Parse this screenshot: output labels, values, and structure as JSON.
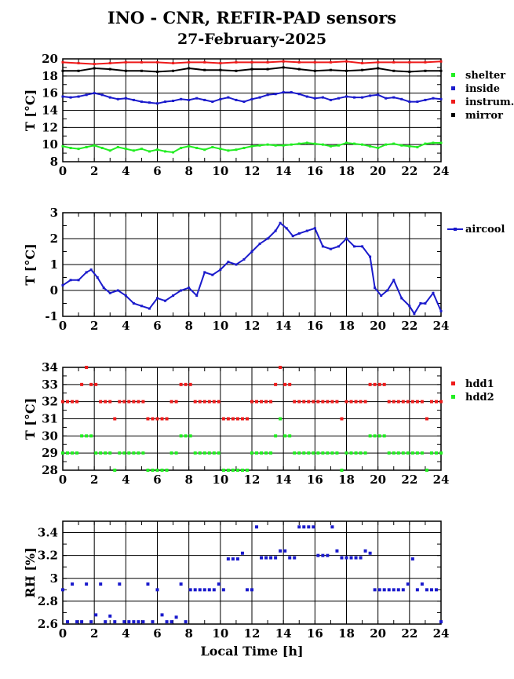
{
  "title": "INO - CNR, REFIR-PAD sensors",
  "subtitle": "27-February-2025",
  "colors": {
    "green": "#22ee22",
    "blue": "#1a1acc",
    "red": "#ee1a1a",
    "black": "#000000"
  },
  "chart_data": [
    {
      "type": "line",
      "ylabel": "T [°C]",
      "xlim": [
        0,
        24
      ],
      "ylim": [
        8,
        20
      ],
      "xticks": [
        "0",
        "2",
        "4",
        "6",
        "8",
        "10",
        "12",
        "14",
        "16",
        "18",
        "20",
        "22",
        "24"
      ],
      "yticks": [
        "8",
        "10",
        "12",
        "14",
        "16",
        "18",
        "20"
      ],
      "grid": true,
      "legend": "right",
      "series": [
        {
          "name": "shelter",
          "color": "#22ee22",
          "x": [
            0,
            0.5,
            1,
            1.5,
            2,
            2.5,
            3,
            3.5,
            4,
            4.5,
            5,
            5.5,
            6,
            6.5,
            7,
            7.5,
            8,
            8.5,
            9,
            9.5,
            10,
            10.5,
            11,
            11.5,
            12,
            12.5,
            13,
            13.5,
            14,
            14.5,
            15,
            15.5,
            16,
            16.5,
            17,
            17.5,
            18,
            18.5,
            19,
            19.5,
            20,
            20.5,
            21,
            21.5,
            22,
            22.5,
            23,
            23.5,
            24
          ],
          "y": [
            9.8,
            9.6,
            9.5,
            9.7,
            9.9,
            9.6,
            9.3,
            9.7,
            9.5,
            9.3,
            9.5,
            9.2,
            9.4,
            9.2,
            9.1,
            9.6,
            9.8,
            9.6,
            9.4,
            9.7,
            9.5,
            9.3,
            9.4,
            9.6,
            9.8,
            9.9,
            10.0,
            9.9,
            9.9,
            10.0,
            10.1,
            10.2,
            10.1,
            10.0,
            9.8,
            9.9,
            10.2,
            10.1,
            10.0,
            9.8,
            9.6,
            10.0,
            10.1,
            9.9,
            9.8,
            9.7,
            10.1,
            10.2,
            10.2
          ]
        },
        {
          "name": "inside",
          "color": "#1a1acc",
          "x": [
            0,
            0.5,
            1,
            1.5,
            2,
            2.5,
            3,
            3.5,
            4,
            4.5,
            5,
            5.5,
            6,
            6.5,
            7,
            7.5,
            8,
            8.5,
            9,
            9.5,
            10,
            10.5,
            11,
            11.5,
            12,
            12.5,
            13,
            13.5,
            14,
            14.5,
            15,
            15.5,
            16,
            16.5,
            17,
            17.5,
            18,
            18.5,
            19,
            19.5,
            20,
            20.5,
            21,
            21.5,
            22,
            22.5,
            23,
            23.5,
            24
          ],
          "y": [
            15.6,
            15.5,
            15.6,
            15.8,
            16.0,
            15.8,
            15.5,
            15.3,
            15.4,
            15.2,
            15.0,
            14.9,
            14.8,
            15.0,
            15.1,
            15.3,
            15.2,
            15.4,
            15.2,
            15.0,
            15.3,
            15.5,
            15.2,
            15.0,
            15.3,
            15.5,
            15.8,
            15.9,
            16.1,
            16.1,
            15.9,
            15.6,
            15.4,
            15.5,
            15.2,
            15.4,
            15.6,
            15.5,
            15.5,
            15.7,
            15.8,
            15.4,
            15.5,
            15.3,
            15.0,
            15.0,
            15.2,
            15.4,
            15.3
          ]
        },
        {
          "name": "instrum.",
          "color": "#ee1a1a",
          "x": [
            0,
            1,
            2,
            3,
            4,
            5,
            6,
            7,
            8,
            9,
            10,
            11,
            12,
            13,
            14,
            15,
            16,
            17,
            18,
            19,
            20,
            21,
            22,
            23,
            24
          ],
          "y": [
            19.6,
            19.5,
            19.4,
            19.5,
            19.6,
            19.6,
            19.6,
            19.5,
            19.6,
            19.6,
            19.5,
            19.6,
            19.6,
            19.6,
            19.7,
            19.6,
            19.6,
            19.6,
            19.7,
            19.5,
            19.6,
            19.6,
            19.6,
            19.6,
            19.7
          ]
        },
        {
          "name": "mirror",
          "color": "#000000",
          "x": [
            0,
            1,
            2,
            3,
            4,
            5,
            6,
            7,
            8,
            9,
            10,
            11,
            12,
            13,
            14,
            15,
            16,
            17,
            18,
            19,
            20,
            21,
            22,
            23,
            24
          ],
          "y": [
            18.6,
            18.6,
            18.9,
            18.8,
            18.6,
            18.6,
            18.5,
            18.6,
            18.9,
            18.7,
            18.7,
            18.6,
            18.8,
            18.8,
            19.0,
            18.8,
            18.6,
            18.7,
            18.6,
            18.7,
            18.9,
            18.6,
            18.5,
            18.6,
            18.6
          ]
        }
      ]
    },
    {
      "type": "line",
      "ylabel": "T [°C]",
      "xlim": [
        0,
        24
      ],
      "ylim": [
        -1,
        3
      ],
      "xticks": [
        "0",
        "2",
        "4",
        "6",
        "8",
        "10",
        "12",
        "14",
        "16",
        "18",
        "20",
        "22",
        "24"
      ],
      "yticks": [
        "-1",
        "0",
        "1",
        "2",
        "3"
      ],
      "grid": true,
      "legend": "right",
      "series": [
        {
          "name": "aircool",
          "color": "#1a1acc",
          "x": [
            0,
            0.5,
            1,
            1.5,
            1.8,
            2.2,
            2.6,
            3,
            3.5,
            4,
            4.5,
            5,
            5.5,
            6,
            6.5,
            7,
            7.5,
            8,
            8.5,
            9,
            9.5,
            10,
            10.5,
            11,
            11.5,
            12,
            12.5,
            13,
            13.5,
            13.8,
            14.2,
            14.6,
            15,
            15.5,
            16,
            16.5,
            17,
            17.5,
            18,
            18.5,
            19,
            19.5,
            19.8,
            20.2,
            20.6,
            21,
            21.5,
            22,
            22.3,
            22.7,
            23,
            23.5,
            24
          ],
          "y": [
            0.2,
            0.4,
            0.4,
            0.7,
            0.8,
            0.5,
            0.1,
            -0.1,
            0.0,
            -0.2,
            -0.5,
            -0.6,
            -0.7,
            -0.3,
            -0.4,
            -0.2,
            0.0,
            0.1,
            -0.2,
            0.7,
            0.6,
            0.8,
            1.1,
            1.0,
            1.2,
            1.5,
            1.8,
            2.0,
            2.3,
            2.6,
            2.4,
            2.1,
            2.2,
            2.3,
            2.4,
            1.7,
            1.6,
            1.7,
            2.0,
            1.7,
            1.7,
            1.3,
            0.1,
            -0.2,
            0.0,
            0.4,
            -0.3,
            -0.6,
            -0.9,
            -0.5,
            -0.5,
            -0.1,
            -0.8
          ]
        }
      ]
    },
    {
      "type": "scatter",
      "ylabel": "T [°C]",
      "xlim": [
        0,
        24
      ],
      "ylim": [
        28,
        34
      ],
      "xticks": [
        "0",
        "2",
        "4",
        "6",
        "8",
        "10",
        "12",
        "14",
        "16",
        "18",
        "20",
        "22",
        "24"
      ],
      "yticks": [
        "28",
        "29",
        "30",
        "31",
        "32",
        "33",
        "34"
      ],
      "grid": true,
      "legend": "right",
      "series": [
        {
          "name": "hdd1",
          "color": "#ee1a1a",
          "x": [
            0,
            0.3,
            0.6,
            0.9,
            1.2,
            1.5,
            1.8,
            2.1,
            2.4,
            2.7,
            3.0,
            3.3,
            3.6,
            3.9,
            4.2,
            4.5,
            4.8,
            5.1,
            5.4,
            5.7,
            6.0,
            6.3,
            6.6,
            6.9,
            7.2,
            7.5,
            7.8,
            8.1,
            8.4,
            8.7,
            9.0,
            9.3,
            9.6,
            9.9,
            10.2,
            10.5,
            10.8,
            11.1,
            11.4,
            11.7,
            12.0,
            12.3,
            12.6,
            12.9,
            13.2,
            13.5,
            13.8,
            14.1,
            14.4,
            14.7,
            15.0,
            15.3,
            15.6,
            15.9,
            16.2,
            16.5,
            16.8,
            17.1,
            17.4,
            17.7,
            18.0,
            18.3,
            18.6,
            18.9,
            19.2,
            19.5,
            19.8,
            20.1,
            20.4,
            20.7,
            21.0,
            21.3,
            21.6,
            21.9,
            22.2,
            22.5,
            22.8,
            23.1,
            23.4,
            23.7,
            24.0
          ],
          "y": [
            32,
            32,
            32,
            32,
            33,
            34,
            33,
            33,
            32,
            32,
            32,
            31,
            32,
            32,
            32,
            32,
            32,
            32,
            31,
            31,
            31,
            31,
            31,
            32,
            32,
            33,
            33,
            33,
            32,
            32,
            32,
            32,
            32,
            32,
            31,
            31,
            31,
            31,
            31,
            31,
            32,
            32,
            32,
            32,
            32,
            33,
            34,
            33,
            33,
            32,
            32,
            32,
            32,
            32,
            32,
            32,
            32,
            32,
            32,
            31,
            32,
            32,
            32,
            32,
            32,
            33,
            33,
            33,
            33,
            32,
            32,
            32,
            32,
            32,
            32,
            32,
            32,
            31,
            32,
            32,
            32
          ]
        },
        {
          "name": "hdd2",
          "color": "#22ee22",
          "x": [
            0,
            0.3,
            0.6,
            0.9,
            1.2,
            1.5,
            1.8,
            2.1,
            2.4,
            2.7,
            3.0,
            3.3,
            3.6,
            3.9,
            4.2,
            4.5,
            4.8,
            5.1,
            5.4,
            5.7,
            6.0,
            6.3,
            6.6,
            6.9,
            7.2,
            7.5,
            7.8,
            8.1,
            8.4,
            8.7,
            9.0,
            9.3,
            9.6,
            9.9,
            10.2,
            10.5,
            10.8,
            11.1,
            11.4,
            11.7,
            12.0,
            12.3,
            12.6,
            12.9,
            13.2,
            13.5,
            13.8,
            14.1,
            14.4,
            14.7,
            15.0,
            15.3,
            15.6,
            15.9,
            16.2,
            16.5,
            16.8,
            17.1,
            17.4,
            17.7,
            18.0,
            18.3,
            18.6,
            18.9,
            19.2,
            19.5,
            19.8,
            20.1,
            20.4,
            20.7,
            21.0,
            21.3,
            21.6,
            21.9,
            22.2,
            22.5,
            22.8,
            23.1,
            23.4,
            23.7,
            24.0
          ],
          "y": [
            29,
            29,
            29,
            29,
            30,
            30,
            30,
            29,
            29,
            29,
            29,
            28,
            29,
            29,
            29,
            29,
            29,
            29,
            28,
            28,
            28,
            28,
            28,
            29,
            29,
            30,
            30,
            30,
            29,
            29,
            29,
            29,
            29,
            29,
            28,
            28,
            28,
            28,
            28,
            28,
            29,
            29,
            29,
            29,
            29,
            30,
            31,
            30,
            30,
            29,
            29,
            29,
            29,
            29,
            29,
            29,
            29,
            29,
            29,
            28,
            29,
            29,
            29,
            29,
            29,
            30,
            30,
            30,
            30,
            29,
            29,
            29,
            29,
            29,
            29,
            29,
            29,
            28,
            29,
            29,
            29
          ]
        }
      ]
    },
    {
      "type": "scatter",
      "ylabel": "RH [%]",
      "xlabel": "Local Time [h]",
      "xlim": [
        0,
        24
      ],
      "ylim": [
        2.6,
        3.5
      ],
      "xticks": [
        "0",
        "2",
        "4",
        "6",
        "8",
        "10",
        "12",
        "14",
        "16",
        "18",
        "20",
        "22",
        "24"
      ],
      "yticks": [
        "2.6",
        "2.8",
        "3",
        "3.2",
        "3.4"
      ],
      "grid": true,
      "legend": "none",
      "series": [
        {
          "name": "",
          "color": "#1a1acc",
          "x": [
            0,
            0.3,
            0.6,
            0.9,
            1.2,
            1.5,
            1.8,
            2.1,
            2.4,
            2.7,
            3.0,
            3.3,
            3.6,
            3.9,
            4.2,
            4.5,
            4.8,
            5.1,
            5.4,
            5.7,
            6.0,
            6.3,
            6.6,
            6.9,
            7.2,
            7.5,
            7.8,
            8.1,
            8.4,
            8.7,
            9.0,
            9.3,
            9.6,
            9.9,
            10.2,
            10.5,
            10.8,
            11.1,
            11.4,
            11.7,
            12.0,
            12.3,
            12.6,
            12.9,
            13.2,
            13.5,
            13.8,
            14.1,
            14.4,
            14.7,
            15.0,
            15.3,
            15.6,
            15.9,
            16.2,
            16.5,
            16.8,
            17.1,
            17.4,
            17.7,
            18.0,
            18.3,
            18.6,
            18.9,
            19.2,
            19.5,
            19.8,
            20.1,
            20.4,
            20.7,
            21.0,
            21.3,
            21.6,
            21.9,
            22.2,
            22.5,
            22.8,
            23.1,
            23.4,
            23.7,
            24.0
          ],
          "y": [
            2.9,
            2.62,
            2.95,
            2.62,
            2.62,
            2.95,
            2.62,
            2.68,
            2.95,
            2.62,
            2.67,
            2.62,
            2.95,
            2.62,
            2.62,
            2.62,
            2.62,
            2.62,
            2.95,
            2.62,
            2.9,
            2.68,
            2.62,
            2.62,
            2.66,
            2.95,
            2.62,
            2.9,
            2.9,
            2.9,
            2.9,
            2.9,
            2.9,
            2.95,
            2.9,
            3.17,
            3.17,
            3.17,
            3.22,
            2.9,
            2.9,
            3.45,
            3.18,
            3.18,
            3.18,
            3.18,
            3.24,
            3.24,
            3.18,
            3.18,
            3.45,
            3.45,
            3.45,
            3.45,
            3.2,
            3.2,
            3.2,
            3.45,
            3.24,
            3.18,
            3.18,
            3.18,
            3.18,
            3.18,
            3.24,
            3.22,
            2.9,
            2.9,
            2.9,
            2.9,
            2.9,
            2.9,
            2.9,
            2.95,
            3.17,
            2.9,
            2.95,
            2.9,
            2.9,
            2.9,
            2.62
          ]
        }
      ]
    }
  ]
}
